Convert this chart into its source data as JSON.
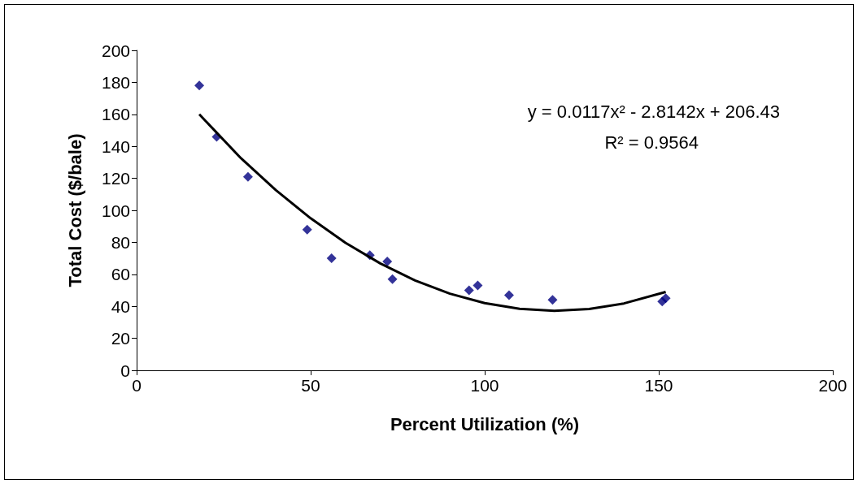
{
  "chart_data": {
    "type": "scatter",
    "xlabel": "Percent Utilization (%)",
    "ylabel": "Total Cost ($/bale)",
    "annotations": [
      "y = 0.0117x² - 2.8142x + 206.43",
      "R² = 0.9564"
    ],
    "series": [
      {
        "color": "#000080",
        "marker": "diamond",
        "x": [
          18,
          23,
          32,
          49,
          56,
          67,
          72,
          73.5,
          95.5,
          98,
          107,
          119.5,
          151,
          152
        ],
        "values": [
          178,
          146,
          121,
          88,
          70,
          72,
          68,
          57,
          50,
          53,
          47,
          44,
          43,
          45
        ]
      },
      {
        "type": "line",
        "color": "#000000",
        "marker": "none",
        "x": [
          18,
          30,
          40,
          50,
          60,
          70,
          80,
          90,
          100,
          110,
          120,
          130,
          140,
          152
        ],
        "values": [
          160,
          132.5,
          112.6,
          95,
          79.7,
          66.8,
          56.2,
          47.9,
          42,
          38.4,
          37.2,
          38.3,
          41.8,
          49
        ]
      }
    ],
    "xlim": [
      0,
      200
    ],
    "xticks": [
      0,
      50,
      100,
      150,
      200
    ],
    "ylim": [
      0,
      200
    ],
    "yticks": [
      0,
      20,
      40,
      60,
      80,
      100,
      120,
      140,
      160,
      180,
      200
    ],
    "grid": false
  }
}
